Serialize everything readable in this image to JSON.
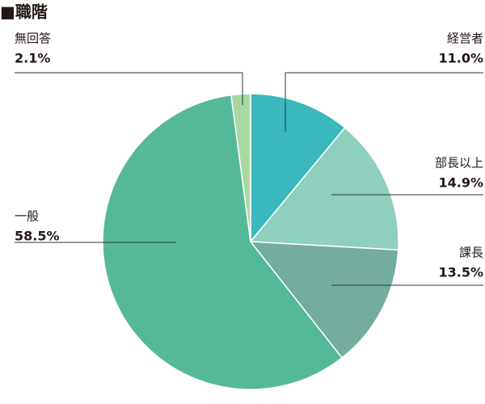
{
  "chart_data": {
    "type": "pie",
    "title": "■職階",
    "categories": [
      "経営者",
      "部長以上",
      "課長",
      "一般",
      "無回答"
    ],
    "values": [
      11.0,
      14.9,
      13.5,
      58.5,
      2.1
    ],
    "value_labels": [
      "11.0%",
      "14.9%",
      "13.5%",
      "58.5%",
      "2.1%"
    ],
    "colors": [
      "#3ab8bd",
      "#8ecfbd",
      "#72ad9f",
      "#55b999",
      "#a8d8a0"
    ]
  }
}
